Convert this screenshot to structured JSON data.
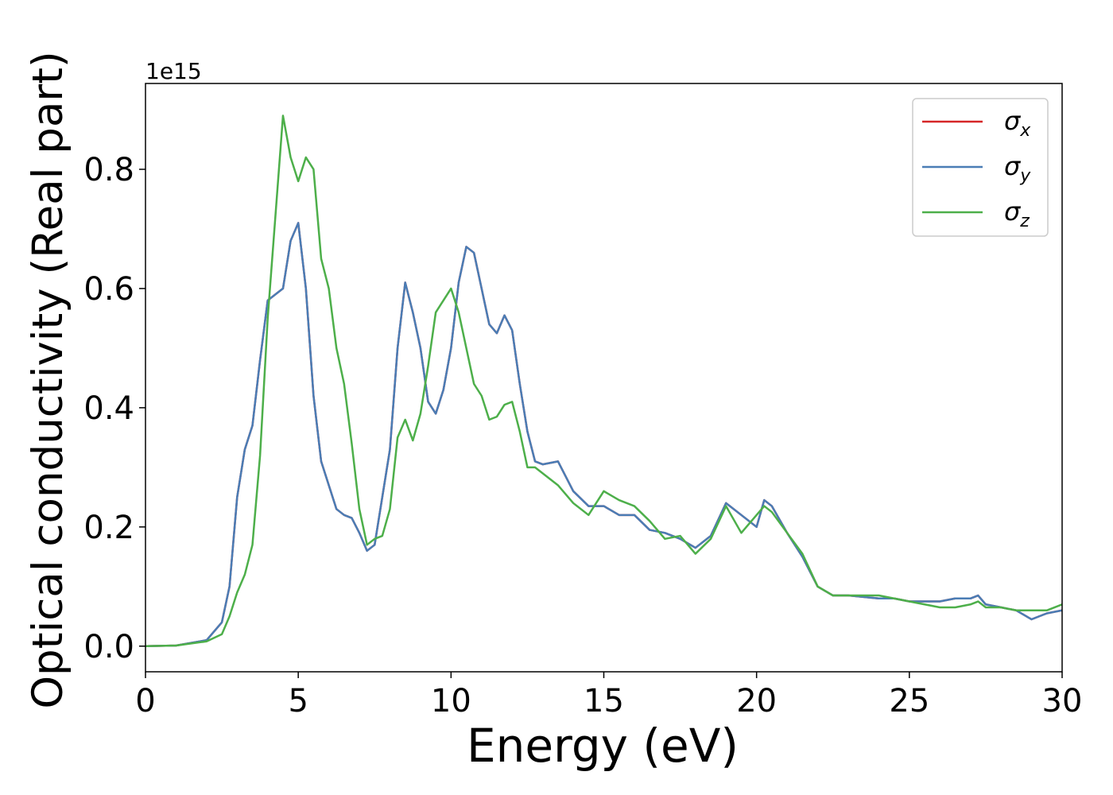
{
  "chart_data": {
    "type": "line",
    "xlabel": "Energy (eV)",
    "ylabel": "Optical conductivity (Real part)",
    "y_offset_text": "1e15",
    "x": [
      0,
      1,
      2,
      2.5,
      2.75,
      3,
      3.25,
      3.5,
      3.75,
      4,
      4.25,
      4.5,
      4.75,
      5,
      5.25,
      5.5,
      5.75,
      6,
      6.25,
      6.5,
      6.75,
      7,
      7.25,
      7.5,
      7.75,
      8,
      8.25,
      8.5,
      8.75,
      9,
      9.25,
      9.5,
      9.75,
      10,
      10.25,
      10.5,
      10.75,
      11,
      11.25,
      11.5,
      11.75,
      12,
      12.25,
      12.5,
      12.75,
      13,
      13.5,
      14,
      14.5,
      15,
      15.5,
      16,
      16.5,
      17,
      17.5,
      18,
      18.5,
      19,
      19.5,
      20,
      20.25,
      20.5,
      21,
      21.5,
      22,
      22.5,
      23,
      24,
      24.5,
      25,
      26,
      26.5,
      27,
      27.25,
      27.5,
      28,
      28.5,
      29,
      29.5,
      30
    ],
    "series": [
      {
        "name": "σx",
        "color": "#d62728",
        "values": [
          0,
          0.001,
          0.01,
          0.04,
          0.1,
          0.25,
          0.33,
          0.37,
          0.48,
          0.58,
          0.59,
          0.6,
          0.68,
          0.71,
          0.6,
          0.42,
          0.31,
          0.27,
          0.23,
          0.22,
          0.215,
          0.19,
          0.16,
          0.17,
          0.25,
          0.33,
          0.5,
          0.61,
          0.56,
          0.5,
          0.41,
          0.39,
          0.43,
          0.5,
          0.61,
          0.67,
          0.66,
          0.6,
          0.54,
          0.525,
          0.555,
          0.53,
          0.44,
          0.36,
          0.31,
          0.305,
          0.31,
          0.26,
          0.235,
          0.235,
          0.22,
          0.22,
          0.195,
          0.19,
          0.18,
          0.165,
          0.185,
          0.24,
          0.22,
          0.2,
          0.245,
          0.235,
          0.19,
          0.15,
          0.1,
          0.085,
          0.085,
          0.08,
          0.08,
          0.075,
          0.075,
          0.08,
          0.08,
          0.085,
          0.07,
          0.065,
          0.06,
          0.045,
          0.055,
          0.06
        ]
      },
      {
        "name": "σy",
        "color": "#4a7db5",
        "values": [
          0,
          0.001,
          0.01,
          0.04,
          0.1,
          0.25,
          0.33,
          0.37,
          0.48,
          0.58,
          0.59,
          0.6,
          0.68,
          0.71,
          0.6,
          0.42,
          0.31,
          0.27,
          0.23,
          0.22,
          0.215,
          0.19,
          0.16,
          0.17,
          0.25,
          0.33,
          0.5,
          0.61,
          0.56,
          0.5,
          0.41,
          0.39,
          0.43,
          0.5,
          0.61,
          0.67,
          0.66,
          0.6,
          0.54,
          0.525,
          0.555,
          0.53,
          0.44,
          0.36,
          0.31,
          0.305,
          0.31,
          0.26,
          0.235,
          0.235,
          0.22,
          0.22,
          0.195,
          0.19,
          0.18,
          0.165,
          0.185,
          0.24,
          0.22,
          0.2,
          0.245,
          0.235,
          0.19,
          0.15,
          0.1,
          0.085,
          0.085,
          0.08,
          0.08,
          0.075,
          0.075,
          0.08,
          0.08,
          0.085,
          0.07,
          0.065,
          0.06,
          0.045,
          0.055,
          0.06
        ]
      },
      {
        "name": "σz",
        "color": "#4daf4a",
        "values": [
          0,
          0.001,
          0.008,
          0.02,
          0.05,
          0.09,
          0.12,
          0.17,
          0.32,
          0.55,
          0.72,
          0.89,
          0.82,
          0.78,
          0.82,
          0.8,
          0.65,
          0.6,
          0.5,
          0.44,
          0.34,
          0.23,
          0.17,
          0.18,
          0.185,
          0.23,
          0.35,
          0.38,
          0.345,
          0.39,
          0.47,
          0.56,
          0.58,
          0.6,
          0.56,
          0.5,
          0.44,
          0.42,
          0.38,
          0.385,
          0.405,
          0.41,
          0.36,
          0.3,
          0.3,
          0.29,
          0.27,
          0.24,
          0.22,
          0.26,
          0.245,
          0.235,
          0.21,
          0.18,
          0.185,
          0.155,
          0.18,
          0.235,
          0.19,
          0.22,
          0.235,
          0.225,
          0.19,
          0.155,
          0.1,
          0.085,
          0.085,
          0.085,
          0.08,
          0.075,
          0.065,
          0.065,
          0.07,
          0.075,
          0.065,
          0.065,
          0.06,
          0.06,
          0.06,
          0.07
        ]
      }
    ],
    "xlim": [
      0,
      30
    ],
    "xticks": [
      0,
      5,
      10,
      15,
      20,
      25,
      30
    ],
    "ylim": [
      -0.043,
      0.944
    ],
    "yticks": [
      {
        "value": 0,
        "label": "0.0"
      },
      0.2,
      0.4,
      0.6,
      0.8
    ],
    "legend": "upper right",
    "grid": false
  }
}
